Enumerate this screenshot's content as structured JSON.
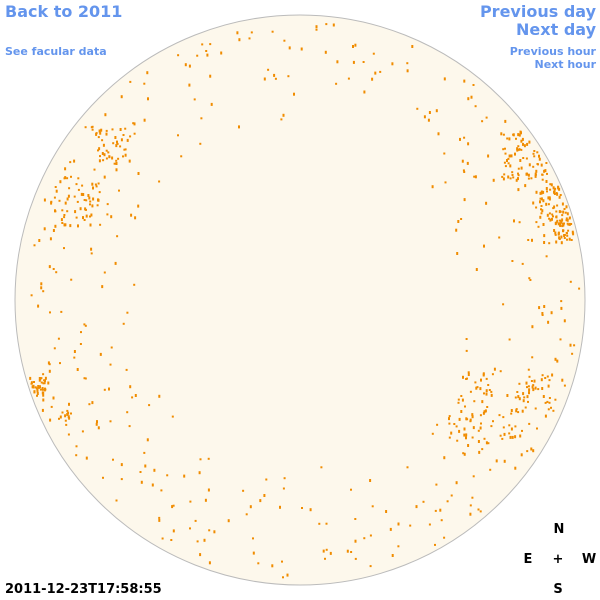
{
  "navigation": {
    "back_to_year": "Back to 2011",
    "previous_day": "Previous day",
    "next_day": "Next day",
    "see_facular_data": "See facular data",
    "previous_hour": "Previous hour",
    "next_hour": "Next hour"
  },
  "timestamp": "2011-12-23T17:58:55",
  "compass": {
    "north": "N",
    "east": "E",
    "center": "+",
    "west": "W",
    "south": "S"
  }
}
